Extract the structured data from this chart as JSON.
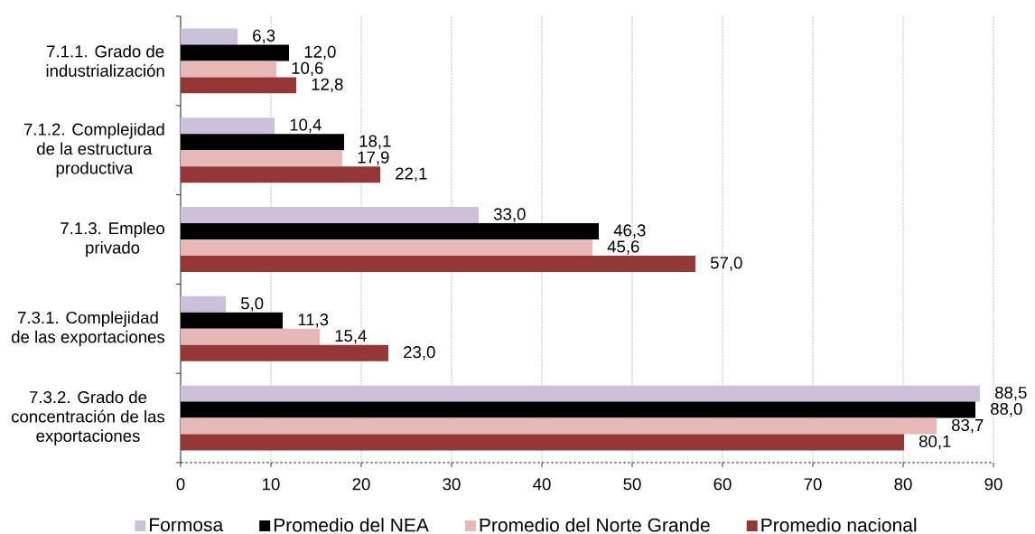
{
  "chart_data": {
    "type": "bar",
    "orientation": "horizontal",
    "categories": [
      "7.1.1. Grado de industrialización",
      "7.1.2. Complejidad de la estructura productiva",
      "7.1.3. Empleo privado",
      "7.3.1. Complejidad de las exportaciones",
      "7.3.2. Grado de concentración de las exportaciones"
    ],
    "series": [
      {
        "name": "Formosa",
        "color": "#ccc0da",
        "values": [
          6.3,
          10.4,
          33.0,
          5.0,
          88.5
        ],
        "value_labels": [
          "6,3",
          "10,4",
          "33,0",
          "5,0",
          "88,5"
        ]
      },
      {
        "name": "Promedio del NEA",
        "color": "#000000",
        "values": [
          12.0,
          18.1,
          46.3,
          11.3,
          88.0
        ],
        "value_labels": [
          "12,0",
          "18,1",
          "46,3",
          "11,3",
          "88,0"
        ]
      },
      {
        "name": "Promedio del Norte Grande",
        "color": "#e6b9b8",
        "values": [
          10.6,
          17.9,
          45.6,
          15.4,
          83.7
        ],
        "value_labels": [
          "10,6",
          "17,9",
          "45,6",
          "15,4",
          "83,7"
        ]
      },
      {
        "name": "Promedio nacional",
        "color": "#953735",
        "values": [
          12.8,
          22.1,
          57.0,
          23.0,
          80.1
        ],
        "value_labels": [
          "12,8",
          "22,1",
          "57,0",
          "23,0",
          "80,1"
        ]
      }
    ],
    "xlim": [
      0,
      90
    ],
    "xticks": [
      0,
      10,
      20,
      30,
      40,
      50,
      60,
      70,
      80,
      90
    ],
    "grid": "x",
    "legend": "bottom"
  }
}
